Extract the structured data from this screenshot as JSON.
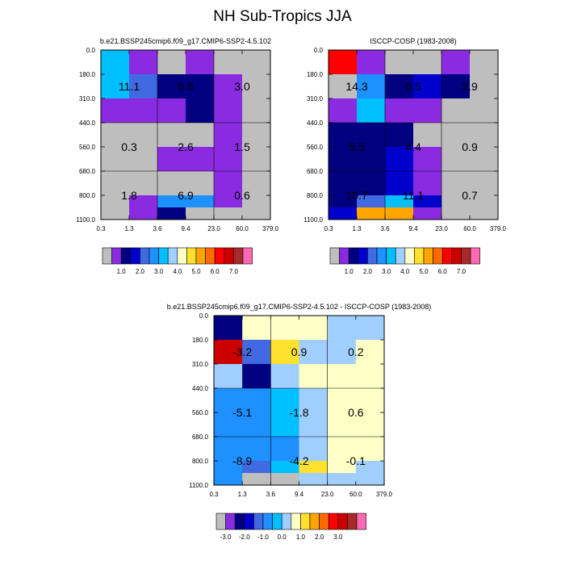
{
  "title": "NH Sub-Tropics JJA",
  "palette": [
    "#bebebe",
    "#8a2be2",
    "#000080",
    "#0000cd",
    "#4169e1",
    "#1e90ff",
    "#00bfff",
    "#a0cfff",
    "#ffffc8",
    "#ffe12d",
    "#ffa500",
    "#ff6a00",
    "#ff0000",
    "#cd0000",
    "#a52a2a",
    "#ff69b4"
  ],
  "chart_data": [
    {
      "type": "heatmap",
      "title": "b.e21.BSSP245cmip6.f09_g17.CMIP6-SSP2-4.5.102",
      "x_ticks": [
        "0.3",
        "1.3",
        "3.6",
        "9.4",
        "23.0",
        "60.0",
        "379.0"
      ],
      "y_ticks": [
        "0.0",
        "180.0",
        "310.0",
        "440.0",
        "560.0",
        "680.0",
        "800.0",
        "1100.0"
      ],
      "cells": [
        [
          6,
          1,
          0,
          1,
          0,
          0
        ],
        [
          6,
          4,
          2,
          2,
          1,
          0
        ],
        [
          1,
          1,
          1,
          2,
          1,
          0
        ],
        [
          0,
          0,
          0,
          0,
          1,
          0
        ],
        [
          0,
          0,
          1,
          1,
          1,
          0
        ],
        [
          0,
          0,
          0,
          0,
          1,
          0
        ],
        [
          0,
          1,
          5,
          5,
          1,
          0
        ],
        [
          0,
          1,
          2,
          0,
          0,
          0
        ]
      ],
      "labels": [
        [
          "11.1",
          "6.5",
          "3.0"
        ],
        [
          "0.3",
          "2.6",
          "1.5"
        ],
        [
          "1.8",
          "6.9",
          "0.6"
        ]
      ],
      "colorbar_labels": [
        "1.0",
        "2.0",
        "3.0",
        "4.0",
        "5.0",
        "6.0",
        "7.0"
      ],
      "colorbar_start": 2
    },
    {
      "type": "heatmap",
      "title": "ISCCP-COSP (1983-2008)",
      "x_ticks": [
        "0.3",
        "1.3",
        "3.6",
        "9.4",
        "23.0",
        "60.0",
        "379.0"
      ],
      "y_ticks": [
        "0.0",
        "180.0",
        "310.0",
        "440.0",
        "560.0",
        "680.0",
        "800.0",
        "1100.0"
      ],
      "cells": [
        [
          12,
          1,
          0,
          0,
          1,
          0
        ],
        [
          0,
          5,
          2,
          3,
          2,
          0
        ],
        [
          1,
          6,
          1,
          1,
          0,
          0
        ],
        [
          2,
          2,
          2,
          0,
          0,
          0
        ],
        [
          2,
          2,
          3,
          1,
          0,
          0
        ],
        [
          2,
          2,
          3,
          1,
          0,
          0
        ],
        [
          2,
          4,
          6,
          3,
          0,
          0
        ],
        [
          3,
          10,
          10,
          1,
          0,
          0
        ]
      ],
      "labels": [
        [
          "14.3",
          "5.5",
          "2.9"
        ],
        [
          "5.5",
          "4.4",
          "0.9"
        ],
        [
          "10.7",
          "11.1",
          "0.7"
        ]
      ],
      "colorbar_labels": [
        "1.0",
        "2.0",
        "3.0",
        "4.0",
        "5.0",
        "6.0",
        "7.0"
      ],
      "colorbar_start": 2
    },
    {
      "type": "heatmap",
      "title": "b.e21.BSSP245cmip6.f09_g17.CMIP6-SSP2-4.5.102 - ISCCP-COSP (1983-2008)",
      "x_ticks": [
        "0.3",
        "1.3",
        "3.6",
        "9.4",
        "23.0",
        "60.0",
        "379.0"
      ],
      "y_ticks": [
        "0.0",
        "180.0",
        "310.0",
        "440.0",
        "560.0",
        "680.0",
        "800.0",
        "1100.0"
      ],
      "cells": [
        [
          2,
          8,
          8,
          8,
          7,
          7
        ],
        [
          13,
          4,
          9,
          7,
          7,
          8
        ],
        [
          7,
          2,
          7,
          8,
          8,
          8
        ],
        [
          5,
          5,
          6,
          7,
          8,
          8
        ],
        [
          5,
          5,
          6,
          7,
          8,
          8
        ],
        [
          5,
          5,
          5,
          7,
          8,
          8
        ],
        [
          5,
          4,
          6,
          9,
          8,
          7
        ],
        [
          5,
          0,
          0,
          7,
          7,
          7
        ]
      ],
      "labels": [
        [
          "-3.2",
          "0.9",
          "0.2"
        ],
        [
          "-5.1",
          "-1.8",
          "0.6"
        ],
        [
          "-8.9",
          "-4.2",
          "-0.1"
        ]
      ],
      "colorbar_labels": [
        "-3.0",
        "-2.0",
        "-1.0",
        "0.0",
        "1.0",
        "2.0",
        "3.0"
      ],
      "colorbar_start": 1
    }
  ]
}
